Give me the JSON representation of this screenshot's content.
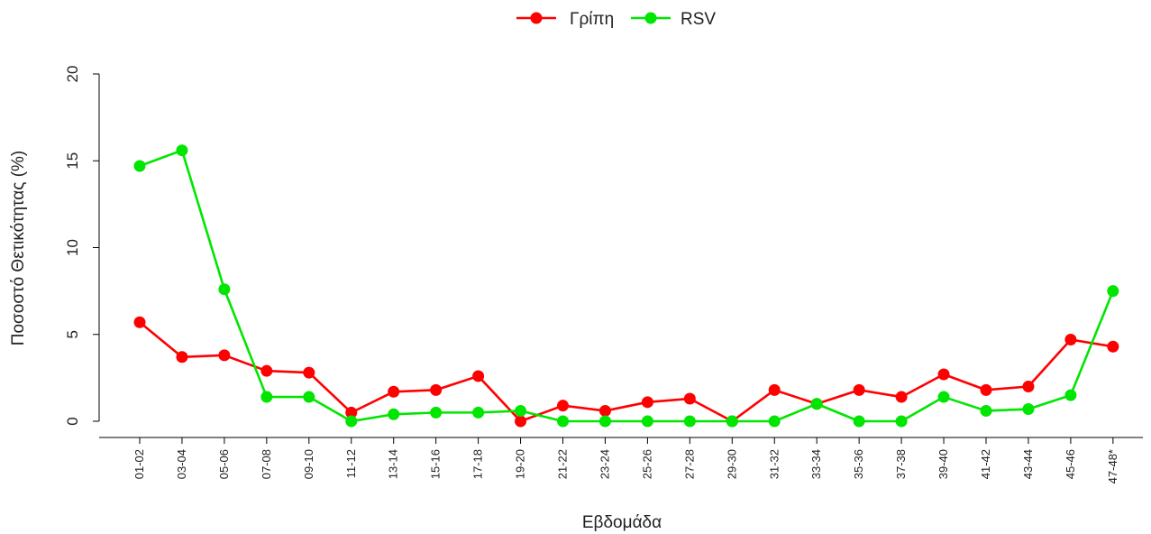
{
  "chart_data": {
    "type": "line",
    "title": "",
    "xlabel": "Εβδομάδα",
    "ylabel": "Ποσοστό Θετικότητας (%)",
    "ylim": [
      0,
      20
    ],
    "yticks": [
      0,
      5,
      10,
      15,
      20
    ],
    "grid": false,
    "legend_position": "top-center",
    "categories": [
      "01-02",
      "03-04",
      "05-06",
      "07-08",
      "09-10",
      "11-12",
      "13-14",
      "15-16",
      "17-18",
      "19-20",
      "21-22",
      "23-24",
      "25-26",
      "27-28",
      "29-30",
      "31-32",
      "33-34",
      "35-36",
      "37-38",
      "39-40",
      "41-42",
      "43-44",
      "45-46",
      "47-48*"
    ],
    "series": [
      {
        "name": "Γρίπη",
        "color": "#ff0000",
        "values": [
          5.7,
          3.7,
          3.8,
          2.9,
          2.8,
          0.5,
          1.7,
          1.8,
          2.6,
          0.0,
          0.9,
          0.6,
          1.1,
          1.3,
          0.0,
          1.8,
          1.0,
          1.8,
          1.4,
          2.7,
          1.8,
          2.0,
          4.7,
          4.3
        ]
      },
      {
        "name": "RSV",
        "color": "#00e600",
        "values": [
          14.7,
          15.6,
          7.6,
          1.4,
          1.4,
          0.0,
          0.4,
          0.5,
          0.5,
          0.6,
          0.0,
          0.0,
          0.0,
          0.0,
          0.0,
          0.0,
          1.0,
          0.0,
          0.0,
          1.4,
          0.6,
          0.7,
          1.5,
          7.5
        ]
      }
    ]
  }
}
